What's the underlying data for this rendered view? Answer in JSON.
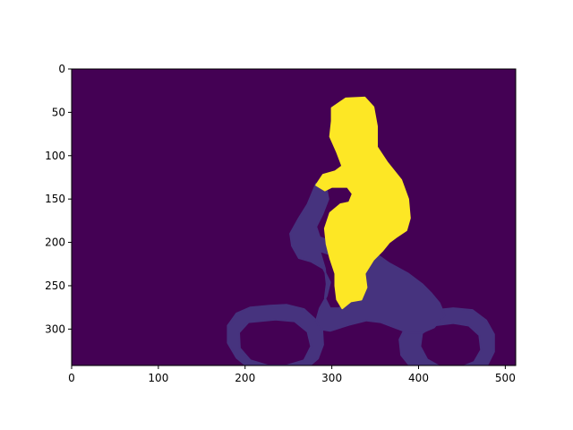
{
  "chart_data": {
    "type": "heatmap",
    "title": "",
    "xlabel": "",
    "ylabel": "",
    "image_width": 512,
    "image_height": 342,
    "xlim": [
      0,
      512
    ],
    "ylim": [
      342,
      0
    ],
    "y_inverted": true,
    "grid": false,
    "colormap": "viridis",
    "x_ticks": [
      0,
      100,
      200,
      300,
      400,
      500
    ],
    "y_ticks": [
      0,
      50,
      100,
      150,
      200,
      250,
      300
    ],
    "classes": [
      {
        "value": 0,
        "color": "#440154"
      },
      {
        "value": 1,
        "color": "#46337e"
      },
      {
        "value": 2,
        "color": "#fde725"
      }
    ],
    "regions": [
      {
        "class": 1,
        "part": "bicycle-front-wheel",
        "outer": [
          [
            228,
            273
          ],
          [
            248,
            272
          ],
          [
            268,
            277
          ],
          [
            280,
            288
          ],
          [
            289,
            302
          ],
          [
            290,
            318
          ],
          [
            284,
            334
          ],
          [
            270,
            346
          ],
          [
            250,
            351
          ],
          [
            228,
            351
          ],
          [
            206,
            346
          ],
          [
            190,
            333
          ],
          [
            180,
            316
          ],
          [
            180,
            296
          ],
          [
            190,
            282
          ],
          [
            206,
            275
          ]
        ],
        "inner": [
          [
            235,
            289
          ],
          [
            257,
            291
          ],
          [
            272,
            303
          ],
          [
            276,
            320
          ],
          [
            268,
            336
          ],
          [
            248,
            342
          ],
          [
            226,
            342
          ],
          [
            206,
            336
          ],
          [
            194,
            322
          ],
          [
            193,
            304
          ],
          [
            204,
            292
          ]
        ]
      },
      {
        "class": 1,
        "part": "bicycle-back-wheel",
        "outer": [
          [
            440,
            276
          ],
          [
            462,
            278
          ],
          [
            478,
            290
          ],
          [
            487,
            306
          ],
          [
            487,
            326
          ],
          [
            478,
            344
          ],
          [
            460,
            355
          ],
          [
            438,
            358
          ],
          [
            414,
            355
          ],
          [
            392,
            345
          ],
          [
            380,
            330
          ],
          [
            378,
            312
          ],
          [
            386,
            296
          ],
          [
            402,
            284
          ],
          [
            420,
            278
          ]
        ],
        "inner": [
          [
            440,
            293
          ],
          [
            458,
            296
          ],
          [
            470,
            307
          ],
          [
            472,
            324
          ],
          [
            464,
            338
          ],
          [
            446,
            345
          ],
          [
            426,
            344
          ],
          [
            410,
            335
          ],
          [
            402,
            320
          ],
          [
            404,
            305
          ],
          [
            416,
            296
          ]
        ]
      },
      {
        "class": 1,
        "part": "bicycle-frame",
        "outer": [
          [
            282,
            132
          ],
          [
            293,
            134
          ],
          [
            296,
            150
          ],
          [
            289,
            168
          ],
          [
            282,
            182
          ],
          [
            286,
            194
          ],
          [
            302,
            200
          ],
          [
            336,
            205
          ],
          [
            352,
            214
          ],
          [
            366,
            224
          ],
          [
            388,
            236
          ],
          [
            404,
            248
          ],
          [
            414,
            258
          ],
          [
            424,
            270
          ],
          [
            430,
            284
          ],
          [
            418,
            298
          ],
          [
            404,
            304
          ],
          [
            388,
            304
          ],
          [
            372,
            298
          ],
          [
            356,
            292
          ],
          [
            340,
            290
          ],
          [
            320,
            295
          ],
          [
            298,
            302
          ],
          [
            286,
            300
          ],
          [
            282,
            290
          ],
          [
            286,
            276
          ],
          [
            294,
            262
          ],
          [
            298,
            246
          ],
          [
            290,
            230
          ],
          [
            276,
            222
          ],
          [
            262,
            218
          ],
          [
            254,
            204
          ],
          [
            252,
            190
          ],
          [
            262,
            172
          ],
          [
            272,
            156
          ]
        ],
        "inner": [
          [
            286,
            210
          ],
          [
            304,
            216
          ],
          [
            318,
            224
          ],
          [
            326,
            236
          ],
          [
            328,
            254
          ],
          [
            320,
            268
          ],
          [
            308,
            276
          ],
          [
            298,
            276
          ],
          [
            292,
            264
          ],
          [
            294,
            248
          ],
          [
            292,
            230
          ]
        ]
      },
      {
        "class": 2,
        "part": "person",
        "outer": [
          [
            300,
            45
          ],
          [
            316,
            34
          ],
          [
            338,
            33
          ],
          [
            348,
            44
          ],
          [
            352,
            66
          ],
          [
            352,
            90
          ],
          [
            364,
            108
          ],
          [
            380,
            128
          ],
          [
            388,
            150
          ],
          [
            390,
            172
          ],
          [
            386,
            186
          ],
          [
            374,
            194
          ],
          [
            366,
            200
          ],
          [
            358,
            210
          ],
          [
            348,
            220
          ],
          [
            338,
            236
          ],
          [
            340,
            252
          ],
          [
            334,
            266
          ],
          [
            322,
            268
          ],
          [
            312,
            276
          ],
          [
            306,
            266
          ],
          [
            304,
            250
          ],
          [
            304,
            236
          ],
          [
            298,
            218
          ],
          [
            294,
            202
          ],
          [
            292,
            184
          ],
          [
            298,
            166
          ],
          [
            310,
            156
          ],
          [
            320,
            154
          ],
          [
            324,
            144
          ],
          [
            318,
            136
          ],
          [
            300,
            136
          ],
          [
            292,
            140
          ],
          [
            282,
            134
          ],
          [
            290,
            122
          ],
          [
            304,
            118
          ],
          [
            312,
            112
          ],
          [
            306,
            96
          ],
          [
            298,
            78
          ],
          [
            300,
            60
          ]
        ]
      }
    ]
  }
}
